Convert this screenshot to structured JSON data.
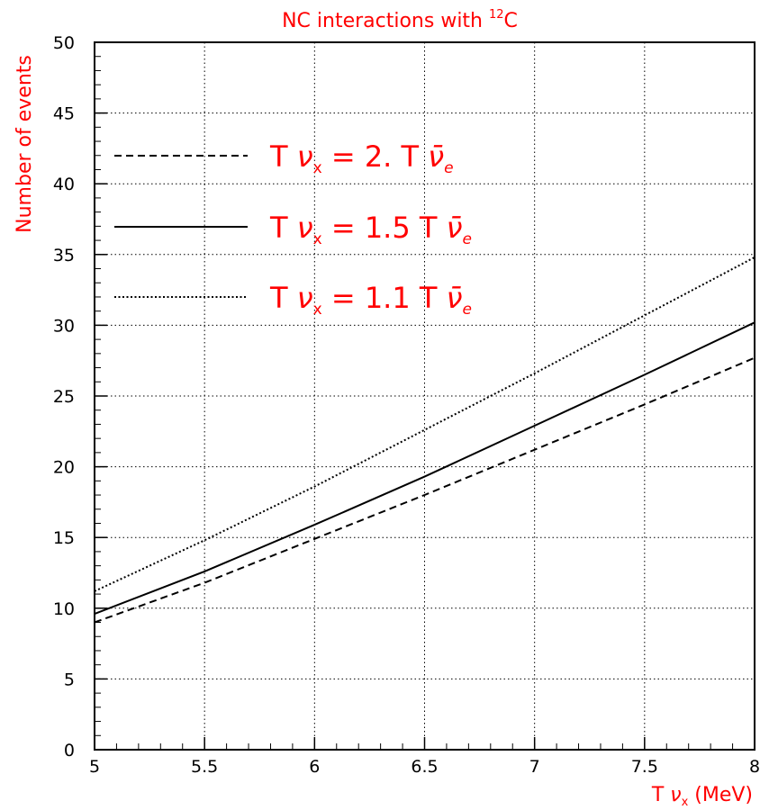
{
  "chart_data": {
    "type": "line",
    "title": "NC interactions with ¹²C",
    "xlabel": "T ν<sub>x</sub> (MeV)",
    "ylabel": "Number of events",
    "xlim": [
      5,
      8
    ],
    "ylim": [
      0,
      50
    ],
    "x_ticks": [
      "5",
      "5.5",
      "6",
      "6.5",
      "7",
      "7.5",
      "8"
    ],
    "y_ticks": [
      "0",
      "5",
      "10",
      "15",
      "20",
      "25",
      "30",
      "35",
      "40",
      "45",
      "50"
    ],
    "grid": true,
    "legend_position": "upper-left",
    "series": [
      {
        "name": "T νx = 2. T ν̄e",
        "style": "dashed",
        "x": [
          5.0,
          5.5,
          6.0,
          6.5,
          7.0,
          7.5,
          8.0
        ],
        "y": [
          9.0,
          11.8,
          14.9,
          18.0,
          21.2,
          24.4,
          27.7
        ]
      },
      {
        "name": "T νx = 1.5 T ν̄e",
        "style": "solid",
        "x": [
          5.0,
          5.5,
          6.0,
          6.5,
          7.0,
          7.5,
          8.0
        ],
        "y": [
          9.6,
          12.6,
          15.9,
          19.3,
          22.9,
          26.5,
          30.2
        ]
      },
      {
        "name": "T νx = 1.1 T ν̄e",
        "style": "dotted",
        "x": [
          5.0,
          5.5,
          6.0,
          6.5,
          7.0,
          7.5,
          8.0
        ],
        "y": [
          11.2,
          14.8,
          18.6,
          22.6,
          26.6,
          30.7,
          34.8
        ]
      }
    ]
  },
  "title_parts": {
    "main": "NC interactions with ",
    "sup": "12",
    "after": "C"
  },
  "xlabel_parts": {
    "t": "T ",
    "nu": "ν",
    "sub": "x",
    "unit": " (MeV)"
  },
  "legend": [
    {
      "lhs": "T ",
      "nu": "ν",
      "nu_sub": "x",
      "mid": " = 2.  T ",
      "bar_nu": "ν̄",
      "bar_sub": "e"
    },
    {
      "lhs": "T ",
      "nu": "ν",
      "nu_sub": "x",
      "mid": " = 1.5  T ",
      "bar_nu": "ν̄",
      "bar_sub": "e"
    },
    {
      "lhs": "T ",
      "nu": "ν",
      "nu_sub": "x",
      "mid": " = 1.1  T ",
      "bar_nu": "ν̄",
      "bar_sub": "e"
    }
  ],
  "colors": {
    "text_accent": "#ff0000",
    "lines": "#000000",
    "grid": "#000000"
  }
}
